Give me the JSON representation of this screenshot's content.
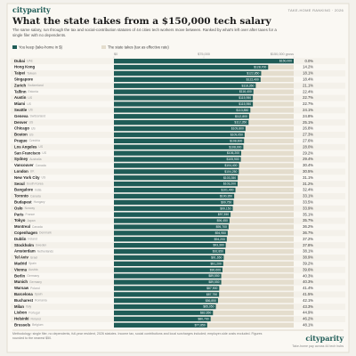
{
  "header": {
    "brand": "cityparity",
    "kicker": "TAKE-HOME RANKING · 2026"
  },
  "chart_data": {
    "type": "bar",
    "title": "What the state takes from a $150,000 tech salary",
    "subtitle": "The same salary, run through the tax and social-contribution statutes of 44 cities tech workers move between. Ranked by what's left over after taxes for a single filer with no dependents.",
    "categories": [
      "Dubai",
      "Hong Kong",
      "Taipei",
      "Singapore",
      "Zurich",
      "Tallinn",
      "Austin",
      "Miami",
      "Seattle",
      "Geneva",
      "Denver",
      "Chicago",
      "Boston",
      "Prague",
      "Los Angeles",
      "San Francisco",
      "Sydney",
      "Vancouver",
      "London",
      "New York City",
      "Seoul",
      "Bangalore",
      "Toronto",
      "Budapest",
      "Oslo",
      "Paris",
      "Tokyo",
      "Montreal",
      "Copenhagen",
      "Dublin",
      "Stockholm",
      "Amsterdam",
      "Tel Aviv",
      "Madrid",
      "Vienna",
      "Berlin",
      "Munich",
      "Warsaw",
      "Barcelona",
      "Bucharest",
      "Milan",
      "Lisbon",
      "Helsinki",
      "Brussels"
    ],
    "countries": [
      "UAE",
      "",
      "Taiwan",
      "",
      "Switzerland",
      "Estonia",
      "US",
      "US",
      "US",
      "Switzerland",
      "US",
      "US",
      "US",
      "Czechia",
      "US",
      "US",
      "Australia",
      "Canada",
      "UK",
      "US",
      "South Korea",
      "India",
      "Canada",
      "Hungary",
      "Norway",
      "France",
      "Japan",
      "Canada",
      "Denmark",
      "Ireland",
      "Sweden",
      "Netherlands",
      "Israel",
      "Spain",
      "Austria",
      "Germany",
      "Germany",
      "Poland",
      "Spain",
      "Romania",
      "Italy",
      "Portugal",
      "Finland",
      "Belgium"
    ],
    "series": [
      {
        "name": "You keep (take-home in $)",
        "color": "#1f5c57",
        "values": [
          150000,
          128700,
          122850,
          122400,
          118350,
          116400,
          115950,
          115950,
          113850,
          112800,
          112350,
          109800,
          109050,
          108600,
          108000,
          106200,
          105900,
          104400,
          104250,
          103350,
          103200,
          101400,
          100350,
          99750,
          99150,
          97350,
          96450,
          95700,
          94950,
          94200,
          93300,
          92850,
          91650,
          91200,
          90600,
          89550,
          89550,
          87900,
          87750,
          86850,
          85050,
          82650,
          80700,
          77850
        ],
        "value_labels": [
          "$150,000",
          "$128,700",
          "$122,850",
          "$122,400",
          "$118,350",
          "$116,400",
          "$115,950",
          "$115,950",
          "$113,850",
          "$112,800",
          "$112,350",
          "$109,800",
          "$109,050",
          "$108,600",
          "$108,000",
          "$106,200",
          "$105,900",
          "$104,400",
          "$104,250",
          "$103,350",
          "$103,200",
          "$101,400",
          "$100,350",
          "$99,750",
          "$99,150",
          "$97,350",
          "$96,450",
          "$95,700",
          "$94,950",
          "$94,200",
          "$93,300",
          "$92,850",
          "$91,650",
          "$91,200",
          "$90,600",
          "$89,550",
          "$89,550",
          "$87,900",
          "$87,750",
          "$86,850",
          "$85,050",
          "$82,650",
          "$80,700",
          "$77,850"
        ]
      },
      {
        "name": "The state takes (tax as effective rate)",
        "color": "#e4ddcd",
        "values": [
          0.0,
          14.2,
          18.1,
          18.4,
          21.1,
          22.4,
          22.7,
          22.7,
          24.1,
          24.8,
          25.1,
          26.8,
          27.3,
          27.6,
          28.0,
          29.2,
          29.4,
          30.4,
          30.5,
          31.1,
          31.2,
          32.4,
          33.1,
          33.5,
          33.9,
          35.1,
          35.7,
          36.2,
          36.7,
          37.2,
          37.8,
          38.1,
          38.9,
          39.2,
          39.6,
          40.3,
          40.3,
          41.4,
          41.5,
          42.1,
          43.3,
          44.9,
          46.2,
          48.1
        ],
        "value_labels": [
          "0.0%",
          "14.2%",
          "18.1%",
          "18.4%",
          "21.1%",
          "22.4%",
          "22.7%",
          "22.7%",
          "24.1%",
          "24.8%",
          "25.1%",
          "26.8%",
          "27.3%",
          "27.6%",
          "28.0%",
          "29.2%",
          "29.4%",
          "30.4%",
          "30.5%",
          "31.1%",
          "31.2%",
          "32.4%",
          "33.1%",
          "33.5%",
          "33.9%",
          "35.1%",
          "35.7%",
          "36.2%",
          "36.7%",
          "37.2%",
          "37.8%",
          "38.1%",
          "38.9%",
          "39.2%",
          "39.6%",
          "40.3%",
          "40.3%",
          "41.4%",
          "41.5%",
          "42.1%",
          "43.3%",
          "44.9%",
          "46.2%",
          "48.1%"
        ]
      }
    ],
    "xlim": [
      0,
      150000
    ],
    "xticks": [
      {
        "value": 0,
        "label": "$0"
      },
      {
        "value": 75000,
        "label": "$75,000"
      },
      {
        "value": 150000,
        "label": "$150,000 gross"
      }
    ]
  },
  "footer": {
    "methodology": "Methodology: single filer, no dependents, full-year resident, 2026 statutes. Income tax, social contributions and local surcharges included; employer-side costs excluded. Figures rounded to the nearest $50.",
    "brand": "cityparity",
    "caption": "Take-home pay across 44 tech hubs"
  }
}
